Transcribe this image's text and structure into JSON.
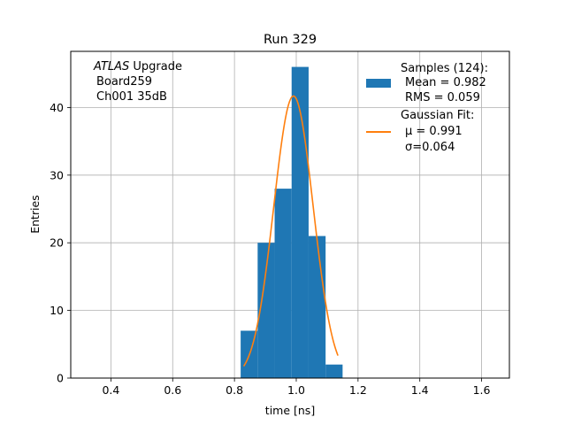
{
  "chart_data": {
    "type": "bar",
    "title": "Run 329",
    "xlabel": "time [ns]",
    "ylabel": "Entries",
    "xlim": [
      0.27,
      1.69
    ],
    "ylim": [
      0,
      48.3
    ],
    "grid": true,
    "x_ticks": [
      0.4,
      0.6,
      0.8,
      1.0,
      1.2,
      1.4,
      1.6
    ],
    "x_tick_labels": [
      "0.4",
      "0.6",
      "0.8",
      "1.0",
      "1.2",
      "1.4",
      "1.6"
    ],
    "y_ticks": [
      0,
      10,
      20,
      30,
      40
    ],
    "y_tick_labels": [
      "0",
      "10",
      "20",
      "30",
      "40"
    ],
    "annotation": {
      "line1_italic": "ATLAS",
      "line1_rest": " Upgrade",
      "line2": "Board259",
      "line3": "Ch001 35dB"
    },
    "histogram": {
      "name": "Samples (124):",
      "color": "#1f77b4",
      "bin_edges": [
        0.82,
        0.875,
        0.93,
        0.985,
        1.04,
        1.095,
        1.15
      ],
      "counts": [
        7,
        20,
        28,
        46,
        21,
        2
      ],
      "mean_label": "Mean = 0.982",
      "rms_label": "RMS = 0.059"
    },
    "fit": {
      "name": "Gaussian Fit:",
      "color": "#ff7f0e",
      "amplitude": 41.7,
      "mu": 0.991,
      "sigma": 0.064,
      "x_range": [
        0.83,
        1.135
      ],
      "mu_label": "μ = 0.991",
      "sigma_label": "σ=0.064"
    },
    "legend_position": "top-right"
  }
}
